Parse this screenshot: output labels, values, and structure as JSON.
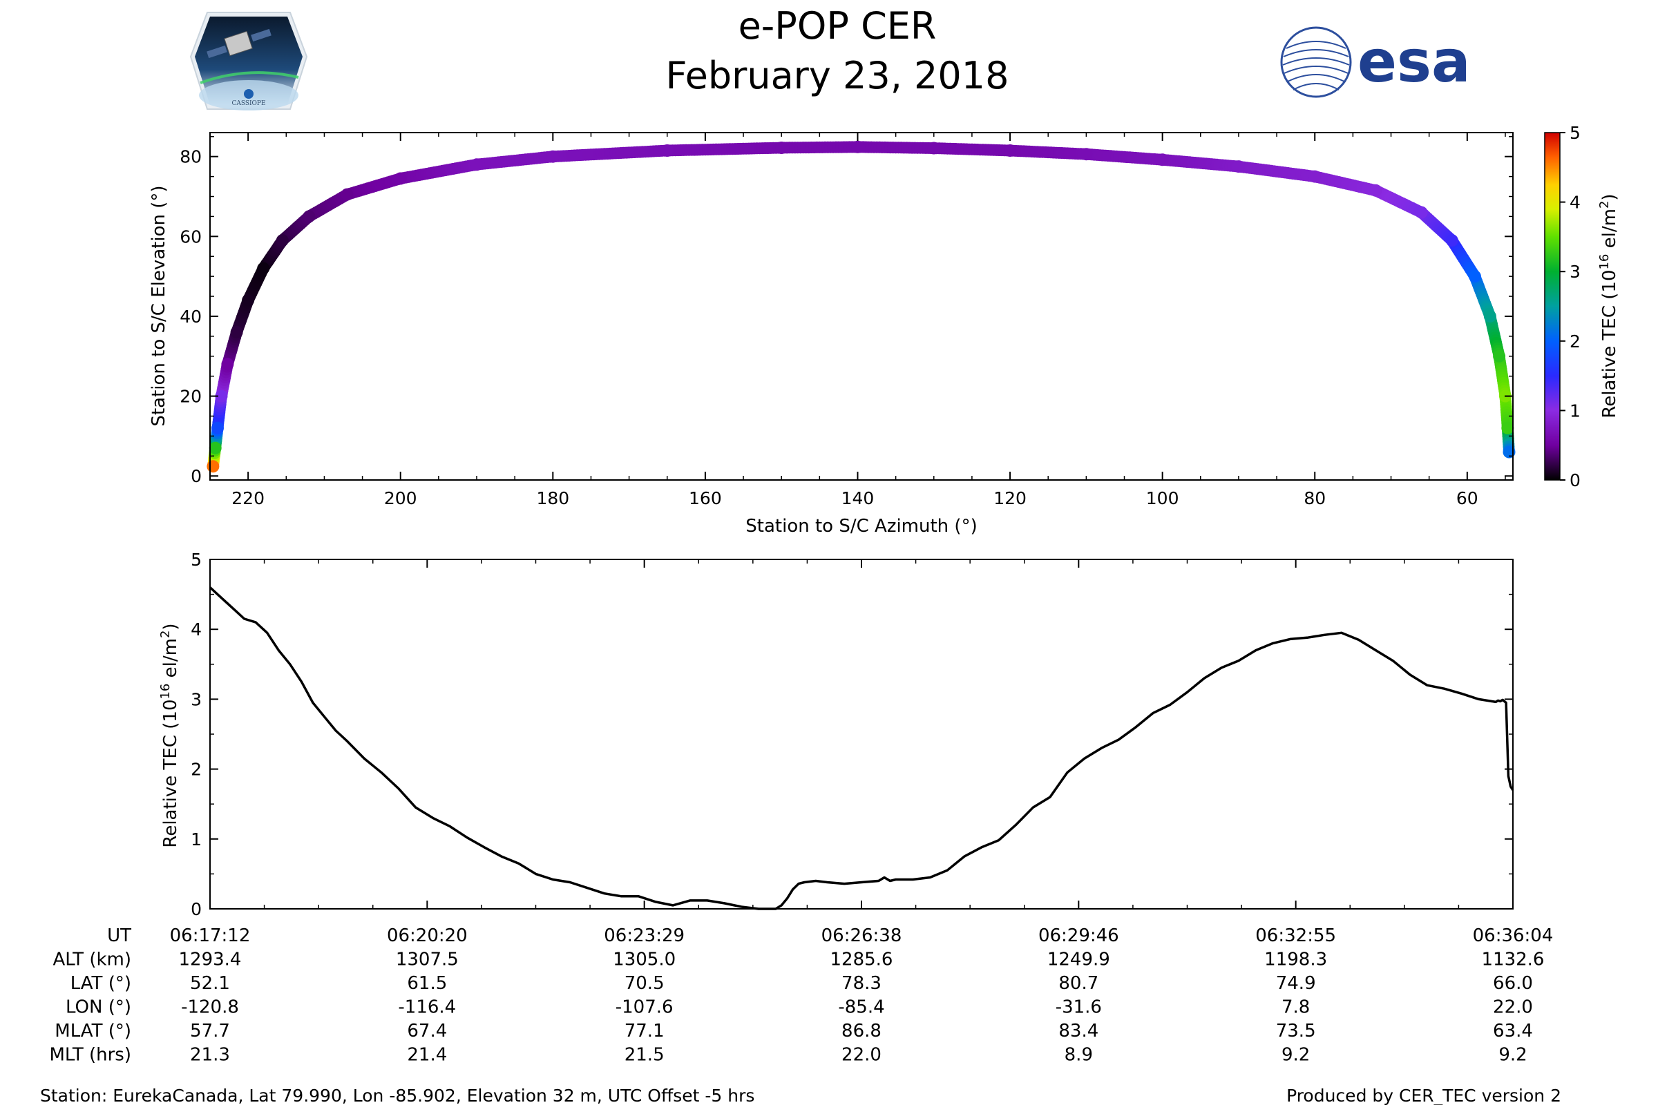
{
  "header": {
    "title": "e-POP CER",
    "date": "February 23, 2018",
    "left_logo_text": "CASSIOPE",
    "right_logo_text": "esa"
  },
  "colors": {
    "esa_blue": "#1f3f8f",
    "line": "#000000"
  },
  "chart_data": [
    {
      "type": "scatter",
      "xlabel": "Station to S/C Azimuth (°)",
      "ylabel": "Station to S/C Elevation (°)",
      "xlim": [
        225,
        54
      ],
      "ylim": [
        -1,
        86
      ],
      "x_ticks": [
        220,
        200,
        180,
        160,
        140,
        120,
        100,
        80,
        60
      ],
      "y_ticks": [
        0,
        20,
        40,
        60,
        80
      ],
      "color_by": "Relative TEC",
      "colorbar": {
        "label": "Relative TEC (10¹⁶ el/m²)",
        "label_main": "Relative TEC (10",
        "label_exp": "16",
        "label_tail": " el/m",
        "label_sq": "2",
        "label_close": ")",
        "min": 0,
        "max": 5,
        "ticks": [
          0,
          1,
          2,
          3,
          4,
          5
        ],
        "colormap": "nipy_spectral"
      },
      "points": [
        {
          "az": 224.6,
          "el": 2.4,
          "tec": 4.6
        },
        {
          "az": 224.3,
          "el": 7,
          "tec": 3.2
        },
        {
          "az": 224.0,
          "el": 12,
          "tec": 1.8
        },
        {
          "az": 223.5,
          "el": 20,
          "tec": 1.1
        },
        {
          "az": 222.7,
          "el": 28,
          "tec": 0.5
        },
        {
          "az": 221.5,
          "el": 36,
          "tec": 0.2
        },
        {
          "az": 220.0,
          "el": 44,
          "tec": 0.1
        },
        {
          "az": 218.0,
          "el": 52,
          "tec": 0.05
        },
        {
          "az": 215.5,
          "el": 59,
          "tec": 0.2
        },
        {
          "az": 212.0,
          "el": 65,
          "tec": 0.35
        },
        {
          "az": 207.0,
          "el": 70.5,
          "tec": 0.45
        },
        {
          "az": 200.0,
          "el": 74.5,
          "tec": 0.55
        },
        {
          "az": 190.0,
          "el": 78,
          "tec": 0.7
        },
        {
          "az": 180.0,
          "el": 80,
          "tec": 0.7
        },
        {
          "az": 165.0,
          "el": 81.5,
          "tec": 0.65
        },
        {
          "az": 150.0,
          "el": 82.2,
          "tec": 0.6
        },
        {
          "az": 140.0,
          "el": 82.4,
          "tec": 0.6
        },
        {
          "az": 130.0,
          "el": 82.1,
          "tec": 0.6
        },
        {
          "az": 120.0,
          "el": 81.5,
          "tec": 0.6
        },
        {
          "az": 110.0,
          "el": 80.6,
          "tec": 0.65
        },
        {
          "az": 100.0,
          "el": 79.2,
          "tec": 0.7
        },
        {
          "az": 90.0,
          "el": 77.5,
          "tec": 0.8
        },
        {
          "az": 80.0,
          "el": 75,
          "tec": 0.85
        },
        {
          "az": 72.0,
          "el": 71.5,
          "tec": 0.95
        },
        {
          "az": 66.0,
          "el": 66,
          "tec": 1.1
        },
        {
          "az": 62.0,
          "el": 59,
          "tec": 1.4
        },
        {
          "az": 59.0,
          "el": 50,
          "tec": 2.0
        },
        {
          "az": 57.0,
          "el": 40,
          "tec": 2.6
        },
        {
          "az": 55.8,
          "el": 30,
          "tec": 3.2
        },
        {
          "az": 55.0,
          "el": 20,
          "tec": 3.6
        },
        {
          "az": 54.7,
          "el": 12,
          "tec": 3.3
        },
        {
          "az": 54.5,
          "el": 6,
          "tec": 2.1
        }
      ]
    },
    {
      "type": "line",
      "xlabel": "UT",
      "ylabel": "Relative TEC (10¹⁶ el/m²)",
      "ylabel_main": "Relative TEC (10",
      "ylabel_exp": "16",
      "ylabel_tail": " el/m",
      "ylabel_sq": "2",
      "ylabel_close": ")",
      "ylim": [
        0,
        5
      ],
      "y_ticks": [
        0,
        1,
        2,
        3,
        4,
        5
      ],
      "x_range_sec": [
        0,
        1140
      ],
      "x": [
        0,
        10,
        20,
        30,
        40,
        50,
        60,
        70,
        80,
        90,
        100,
        110,
        120,
        135,
        150,
        165,
        180,
        195,
        210,
        225,
        240,
        255,
        270,
        285,
        300,
        315,
        330,
        345,
        360,
        375,
        390,
        405,
        420,
        435,
        450,
        465,
        480,
        495,
        500,
        505,
        510,
        515,
        520,
        530,
        540,
        555,
        570,
        585,
        590,
        595,
        600,
        615,
        630,
        645,
        660,
        675,
        690,
        705,
        720,
        735,
        750,
        765,
        780,
        795,
        810,
        825,
        840,
        855,
        870,
        885,
        900,
        915,
        930,
        945,
        960,
        975,
        990,
        1005,
        1020,
        1035,
        1050,
        1065,
        1080,
        1095,
        1110,
        1125,
        1127,
        1129,
        1131,
        1134,
        1136,
        1138,
        1140
      ],
      "y": [
        4.6,
        4.45,
        4.3,
        4.15,
        4.1,
        3.95,
        3.7,
        3.5,
        3.25,
        2.95,
        2.75,
        2.55,
        2.4,
        2.15,
        1.95,
        1.72,
        1.45,
        1.3,
        1.18,
        1.02,
        0.88,
        0.75,
        0.65,
        0.5,
        0.42,
        0.38,
        0.3,
        0.22,
        0.18,
        0.18,
        0.1,
        0.05,
        0.12,
        0.12,
        0.08,
        0.03,
        0.0,
        0.0,
        0.05,
        0.15,
        0.28,
        0.36,
        0.38,
        0.4,
        0.38,
        0.36,
        0.38,
        0.4,
        0.45,
        0.4,
        0.42,
        0.42,
        0.45,
        0.55,
        0.75,
        0.88,
        0.98,
        1.2,
        1.45,
        1.6,
        1.95,
        2.15,
        2.3,
        2.42,
        2.6,
        2.8,
        2.92,
        3.1,
        3.3,
        3.45,
        3.55,
        3.7,
        3.8,
        3.86,
        3.88,
        3.92,
        3.95,
        3.85,
        3.7,
        3.55,
        3.35,
        3.2,
        3.15,
        3.08,
        3.0,
        2.96,
        2.98,
        2.97,
        2.99,
        2.95,
        1.9,
        1.75,
        1.7
      ]
    }
  ],
  "table": {
    "row_labels": [
      "UT",
      "ALT (km)",
      "LAT (°)",
      "LON (°)",
      "MLAT (°)",
      "MLT (hrs)"
    ],
    "columns": [
      {
        "UT": "06:17:12",
        "ALT": "1293.4",
        "LAT": "52.1",
        "LON": "-120.8",
        "MLAT": "57.7",
        "MLT": "21.3"
      },
      {
        "UT": "06:20:20",
        "ALT": "1307.5",
        "LAT": "61.5",
        "LON": "-116.4",
        "MLAT": "67.4",
        "MLT": "21.4"
      },
      {
        "UT": "06:23:29",
        "ALT": "1305.0",
        "LAT": "70.5",
        "LON": "-107.6",
        "MLAT": "77.1",
        "MLT": "21.5"
      },
      {
        "UT": "06:26:38",
        "ALT": "1285.6",
        "LAT": "78.3",
        "LON": "-85.4",
        "MLAT": "86.8",
        "MLT": "22.0"
      },
      {
        "UT": "06:29:46",
        "ALT": "1249.9",
        "LAT": "80.7",
        "LON": "-31.6",
        "MLAT": "83.4",
        "MLT": "8.9"
      },
      {
        "UT": "06:32:55",
        "ALT": "1198.3",
        "LAT": "74.9",
        "LON": "7.8",
        "MLAT": "73.5",
        "MLT": "9.2"
      },
      {
        "UT": "06:36:04",
        "ALT": "1132.6",
        "LAT": "66.0",
        "LON": "22.0",
        "MLAT": "63.4",
        "MLT": "9.2"
      }
    ]
  },
  "footer": {
    "station": "Station: EurekaCanada, Lat 79.990, Lon -85.902, Elevation 32 m, UTC Offset -5 hrs",
    "produced_by": "Produced by CER_TEC version 2"
  }
}
